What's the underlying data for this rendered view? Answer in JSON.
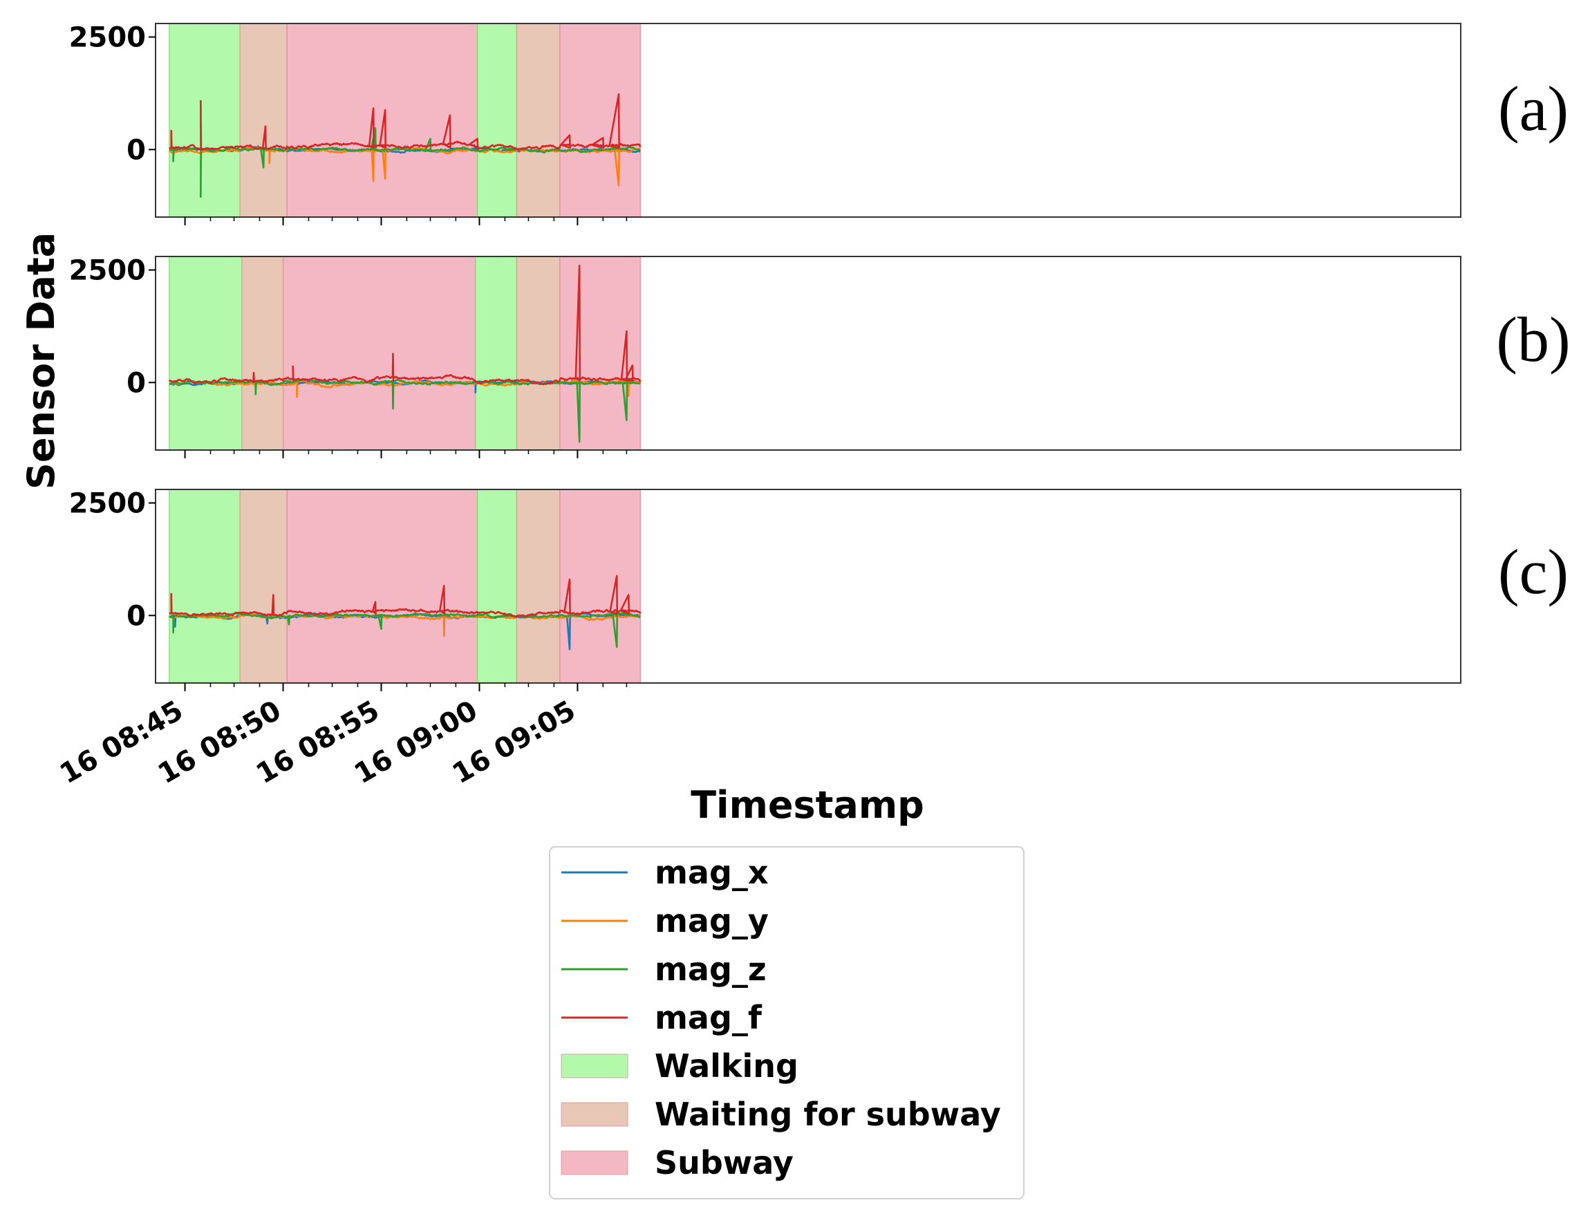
{
  "chart_data": {
    "type": "line",
    "ylabel": "Sensor Data",
    "xlabel": "Timestamp",
    "x_unit": "minutes after 16 08:40",
    "xlim": [
      3.5,
      70.0
    ],
    "ylim": [
      -1500,
      2800
    ],
    "yticks": [
      0,
      2500
    ],
    "ytick_labels": [
      "0",
      "2500"
    ],
    "xticks": [
      5,
      10,
      15,
      20,
      25
    ],
    "xtick_labels": [
      "16 08:45",
      "16 08:50",
      "16 08:55",
      "16 09:00",
      "16 09:05"
    ],
    "minor_xticks": [
      6.3,
      7.5,
      8.8,
      11.3,
      12.5,
      13.8,
      16.3,
      17.5,
      18.8,
      21.3,
      22.5,
      23.8,
      26.3,
      27.5
    ],
    "legend_position": "below",
    "colors": {
      "mag_x": "#1f77b4",
      "mag_y": "#ff7f0e",
      "mag_z": "#2ca02c",
      "mag_f": "#d62728",
      "Walking": "#b3f9ab",
      "Waiting for subway": "#e9c7b7",
      "Subway": "#f4b8c4"
    },
    "legend": [
      {
        "label": "mag_x",
        "kind": "line",
        "color": "#1f77b4"
      },
      {
        "label": "mag_y",
        "kind": "line",
        "color": "#ff7f0e"
      },
      {
        "label": "mag_z",
        "kind": "line",
        "color": "#2ca02c"
      },
      {
        "label": "mag_f",
        "kind": "line",
        "color": "#d62728"
      },
      {
        "label": "Walking",
        "kind": "patch",
        "color": "#b3f9ab"
      },
      {
        "label": "Waiting for subway",
        "kind": "patch",
        "color": "#e9c7b7"
      },
      {
        "label": "Subway",
        "kind": "patch",
        "color": "#f4b8c4"
      }
    ],
    "panels": [
      {
        "label": "(a)",
        "regions": [
          {
            "label": "Walking",
            "start": 4.2,
            "end": 7.8
          },
          {
            "label": "Waiting for subway",
            "start": 7.8,
            "end": 10.2
          },
          {
            "label": "Subway",
            "start": 10.2,
            "end": 19.9
          },
          {
            "label": "Walking",
            "start": 19.9,
            "end": 21.9
          },
          {
            "label": "Waiting for subway",
            "start": 21.9,
            "end": 24.1
          },
          {
            "label": "Subway",
            "start": 24.1,
            "end": 28.2
          }
        ],
        "spikes": [
          {
            "series": "mag_f",
            "t": 5.8,
            "v": 1080
          },
          {
            "series": "mag_z",
            "t": 5.8,
            "v": -1050
          },
          {
            "series": "mag_f",
            "t": 4.3,
            "v": 420
          },
          {
            "series": "mag_z",
            "t": 4.4,
            "v": -260
          },
          {
            "series": "mag_f",
            "t": 9.1,
            "v": 520
          },
          {
            "series": "mag_z",
            "t": 9.0,
            "v": -400
          },
          {
            "series": "mag_y",
            "t": 9.3,
            "v": -300
          },
          {
            "series": "mag_f",
            "t": 14.6,
            "v": 920
          },
          {
            "series": "mag_f",
            "t": 15.2,
            "v": 880
          },
          {
            "series": "mag_z",
            "t": 14.7,
            "v": 480
          },
          {
            "series": "mag_y",
            "t": 14.6,
            "v": -700
          },
          {
            "series": "mag_y",
            "t": 15.2,
            "v": -650
          },
          {
            "series": "mag_f",
            "t": 18.5,
            "v": 760
          },
          {
            "series": "mag_z",
            "t": 17.5,
            "v": 240
          },
          {
            "series": "mag_f",
            "t": 19.9,
            "v": 240
          },
          {
            "series": "mag_f",
            "t": 27.1,
            "v": 1230
          },
          {
            "series": "mag_y",
            "t": 27.1,
            "v": -800
          },
          {
            "series": "mag_f",
            "t": 24.6,
            "v": 320
          },
          {
            "series": "mag_f",
            "t": 26.3,
            "v": 260
          }
        ]
      },
      {
        "label": "(b)",
        "regions": [
          {
            "label": "Walking",
            "start": 4.2,
            "end": 7.9
          },
          {
            "label": "Waiting for subway",
            "start": 7.9,
            "end": 10.0
          },
          {
            "label": "Subway",
            "start": 10.0,
            "end": 19.8
          },
          {
            "label": "Walking",
            "start": 19.8,
            "end": 21.9
          },
          {
            "label": "Waiting for subway",
            "start": 21.9,
            "end": 24.1
          },
          {
            "label": "Subway",
            "start": 24.1,
            "end": 28.2
          }
        ],
        "spikes": [
          {
            "series": "mag_f",
            "t": 15.6,
            "v": 640
          },
          {
            "series": "mag_z",
            "t": 15.6,
            "v": -580
          },
          {
            "series": "mag_f",
            "t": 10.5,
            "v": 360
          },
          {
            "series": "mag_y",
            "t": 10.7,
            "v": -320
          },
          {
            "series": "mag_x",
            "t": 19.8,
            "v": -220
          },
          {
            "series": "mag_f",
            "t": 8.5,
            "v": 220
          },
          {
            "series": "mag_z",
            "t": 8.6,
            "v": -260
          },
          {
            "series": "mag_f",
            "t": 25.1,
            "v": 2600
          },
          {
            "series": "mag_z",
            "t": 25.1,
            "v": -1320
          },
          {
            "series": "mag_f",
            "t": 27.5,
            "v": 1140
          },
          {
            "series": "mag_z",
            "t": 27.5,
            "v": -840
          },
          {
            "series": "mag_f",
            "t": 27.8,
            "v": 380
          },
          {
            "series": "mag_y",
            "t": 27.6,
            "v": -300
          }
        ]
      },
      {
        "label": "(c)",
        "regions": [
          {
            "label": "Walking",
            "start": 4.2,
            "end": 7.8
          },
          {
            "label": "Waiting for subway",
            "start": 7.8,
            "end": 10.2
          },
          {
            "label": "Subway",
            "start": 10.2,
            "end": 19.9
          },
          {
            "label": "Walking",
            "start": 19.9,
            "end": 21.9
          },
          {
            "label": "Waiting for subway",
            "start": 21.9,
            "end": 24.1
          },
          {
            "label": "Subway",
            "start": 24.1,
            "end": 28.2
          }
        ],
        "spikes": [
          {
            "series": "mag_f",
            "t": 4.3,
            "v": 480
          },
          {
            "series": "mag_z",
            "t": 4.4,
            "v": -380
          },
          {
            "series": "mag_x",
            "t": 4.5,
            "v": -250
          },
          {
            "series": "mag_f",
            "t": 9.5,
            "v": 460
          },
          {
            "series": "mag_x",
            "t": 9.2,
            "v": -180
          },
          {
            "series": "mag_z",
            "t": 10.3,
            "v": -200
          },
          {
            "series": "mag_f",
            "t": 14.7,
            "v": 300
          },
          {
            "series": "mag_z",
            "t": 15.0,
            "v": -300
          },
          {
            "series": "mag_f",
            "t": 18.2,
            "v": 660
          },
          {
            "series": "mag_y",
            "t": 18.2,
            "v": -450
          },
          {
            "series": "mag_f",
            "t": 24.6,
            "v": 800
          },
          {
            "series": "mag_x",
            "t": 24.6,
            "v": -750
          },
          {
            "series": "mag_f",
            "t": 27.0,
            "v": 880
          },
          {
            "series": "mag_z",
            "t": 27.0,
            "v": -700
          },
          {
            "series": "mag_f",
            "t": 27.6,
            "v": 460
          }
        ]
      }
    ]
  }
}
